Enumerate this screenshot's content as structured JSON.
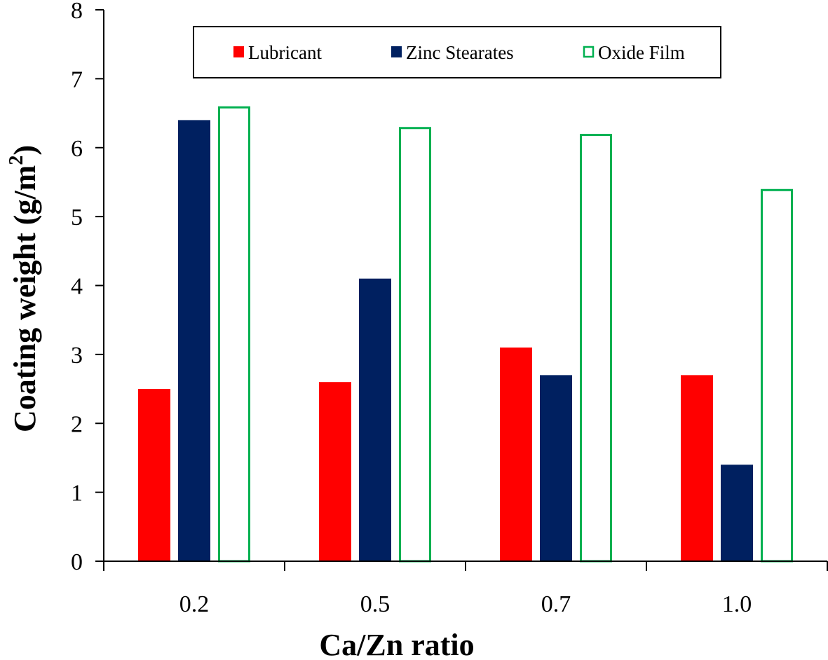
{
  "chart_data": {
    "type": "bar",
    "title": "",
    "xlabel": "Ca/Zn ratio",
    "ylabel": "Coating weight (g/m",
    "ylabel_superscript": "2",
    "ylabel_suffix": ")",
    "categories": [
      "0.2",
      "0.5",
      "0.7",
      "1.0"
    ],
    "ylim": [
      0,
      8
    ],
    "yticks": [
      0,
      1,
      2,
      3,
      4,
      5,
      6,
      7,
      8
    ],
    "grid": false,
    "legend_position": "top-center",
    "series": [
      {
        "name": "Lubricant",
        "style": "filled",
        "color": "#ff0000",
        "values": [
          2.5,
          2.6,
          3.1,
          2.7
        ]
      },
      {
        "name": "Zinc Stearates",
        "style": "filled",
        "color": "#002060",
        "values": [
          6.4,
          4.1,
          2.7,
          1.4
        ]
      },
      {
        "name": "Oxide Film",
        "style": "outline",
        "color": "#00b050",
        "values": [
          6.6,
          6.3,
          6.2,
          5.4
        ]
      }
    ]
  }
}
